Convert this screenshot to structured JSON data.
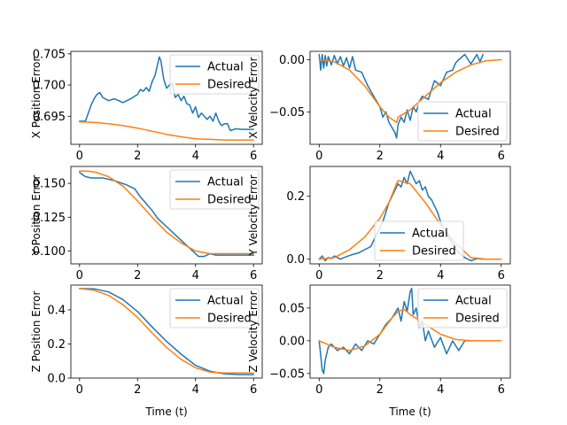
{
  "chart_data": [
    {
      "type": "line",
      "ylabel": "X Position Error",
      "xlabel": "",
      "xlim": [
        -0.3,
        6.3
      ],
      "ylim": [
        0.6905,
        0.7054
      ],
      "xticks": [
        0,
        2,
        4,
        6
      ],
      "xtick_labels": [
        "0",
        "2",
        "4",
        "6"
      ],
      "yticks": [
        0.695,
        0.7,
        0.705
      ],
      "ytick_labels": [
        "0.695",
        "0.700",
        "0.705"
      ],
      "legend": "upper-right",
      "series": [
        {
          "name": "Actual",
          "color": "#1f77b4",
          "x": [
            0,
            0.2,
            0.4,
            0.5,
            0.6,
            0.7,
            0.8,
            1.0,
            1.2,
            1.5,
            1.8,
            2.0,
            2.1,
            2.2,
            2.3,
            2.4,
            2.5,
            2.6,
            2.7,
            2.75,
            2.8,
            2.9,
            3.0,
            3.1,
            3.2,
            3.3,
            3.4,
            3.5,
            3.6,
            3.7,
            3.8,
            3.9,
            4.0,
            4.1,
            4.2,
            4.3,
            4.4,
            4.5,
            4.6,
            4.7,
            4.8,
            4.9,
            5.0,
            5.1,
            5.2,
            5.4,
            5.6,
            5.8,
            6.0
          ],
          "y": [
            0.6942,
            0.6942,
            0.6968,
            0.6978,
            0.6985,
            0.6988,
            0.698,
            0.6975,
            0.6978,
            0.6972,
            0.6979,
            0.6985,
            0.6993,
            0.699,
            0.6996,
            0.699,
            0.7005,
            0.7015,
            0.7035,
            0.7045,
            0.704,
            0.701,
            0.6995,
            0.7,
            0.7003,
            0.698,
            0.6985,
            0.6975,
            0.6982,
            0.697,
            0.6968,
            0.6955,
            0.6965,
            0.6948,
            0.6955,
            0.695,
            0.6945,
            0.695,
            0.6942,
            0.6955,
            0.6942,
            0.6935,
            0.6938,
            0.6938,
            0.6927,
            0.693,
            0.6929,
            0.6929,
            0.6929
          ]
        },
        {
          "name": "Desired",
          "color": "#ff7f0e",
          "x": [
            0,
            0.5,
            1,
            1.5,
            2,
            2.5,
            3,
            3.5,
            4,
            4.5,
            5,
            5.5,
            6
          ],
          "y": [
            0.6941,
            0.694,
            0.6938,
            0.6935,
            0.6931,
            0.6926,
            0.6921,
            0.6917,
            0.6914,
            0.6913,
            0.6912,
            0.6912,
            0.6912
          ]
        }
      ]
    },
    {
      "type": "line",
      "ylabel": "X Velocity Error",
      "xlabel": "",
      "xlim": [
        -0.3,
        6.3
      ],
      "ylim": [
        -0.081,
        0.008
      ],
      "xticks": [
        0,
        2,
        4,
        6
      ],
      "xtick_labels": [
        "0",
        "2",
        "4",
        "6"
      ],
      "yticks": [
        0.0,
        -0.05
      ],
      "ytick_labels": [
        "0.00",
        "−0.05"
      ],
      "legend": "lower-right",
      "series": [
        {
          "name": "Actual",
          "color": "#1f77b4",
          "x": [
            0,
            0.05,
            0.1,
            0.15,
            0.2,
            0.25,
            0.3,
            0.4,
            0.5,
            0.6,
            0.7,
            0.8,
            0.9,
            1.0,
            1.1,
            1.2,
            1.4,
            1.6,
            1.8,
            2.0,
            2.1,
            2.2,
            2.3,
            2.4,
            2.5,
            2.55,
            2.6,
            2.7,
            2.8,
            2.9,
            3.0,
            3.1,
            3.2,
            3.3,
            3.4,
            3.6,
            3.8,
            4.0,
            4.2,
            4.4,
            4.5,
            4.6,
            4.8,
            5.0,
            5.2,
            5.3,
            5.4
          ],
          "y": [
            0.005,
            -0.01,
            0.005,
            -0.008,
            0.004,
            -0.006,
            0.003,
            -0.005,
            0.004,
            -0.004,
            0.003,
            -0.006,
            0.002,
            -0.008,
            0.003,
            -0.01,
            -0.012,
            -0.025,
            -0.035,
            -0.045,
            -0.055,
            -0.05,
            -0.06,
            -0.065,
            -0.07,
            -0.075,
            -0.062,
            -0.055,
            -0.06,
            -0.048,
            -0.058,
            -0.045,
            -0.05,
            -0.04,
            -0.035,
            -0.038,
            -0.02,
            -0.025,
            -0.012,
            -0.01,
            -0.003,
            0.0,
            0.005,
            -0.004,
            0.005,
            -0.002,
            0.005
          ]
        },
        {
          "name": "Desired",
          "color": "#ff7f0e",
          "x": [
            0,
            0.5,
            1.0,
            1.5,
            2.0,
            2.3,
            2.55,
            2.6,
            3.0,
            3.5,
            4.0,
            4.5,
            5.0,
            5.5,
            6.0
          ],
          "y": [
            0.0,
            -0.002,
            -0.01,
            -0.025,
            -0.045,
            -0.055,
            -0.06,
            -0.055,
            -0.048,
            -0.035,
            -0.022,
            -0.012,
            -0.005,
            -0.001,
            0.0
          ]
        }
      ]
    },
    {
      "type": "line",
      "ylabel": "Y Position Error",
      "xlabel": "",
      "xlim": [
        -0.3,
        6.3
      ],
      "ylim": [
        0.0905,
        0.1625
      ],
      "xticks": [
        0,
        2,
        4,
        6
      ],
      "xtick_labels": [
        "0",
        "2",
        "4",
        "6"
      ],
      "yticks": [
        0.1,
        0.125,
        0.15
      ],
      "ytick_labels": [
        "0.100",
        "0.125",
        "0.150"
      ],
      "legend": "upper-right",
      "series": [
        {
          "name": "Actual",
          "color": "#1f77b4",
          "x": [
            0,
            0.2,
            0.4,
            0.8,
            1.2,
            1.6,
            1.9,
            2.1,
            2.3,
            2.5,
            2.7,
            3.0,
            3.3,
            3.6,
            3.9,
            4.1,
            4.3,
            4.5,
            4.7,
            5.0,
            5.5,
            6.0
          ],
          "y": [
            0.158,
            0.155,
            0.154,
            0.154,
            0.152,
            0.149,
            0.146,
            0.14,
            0.135,
            0.13,
            0.124,
            0.118,
            0.112,
            0.106,
            0.1,
            0.096,
            0.096,
            0.098,
            0.097,
            0.097,
            0.097,
            0.097
          ]
        },
        {
          "name": "Desired",
          "color": "#ff7f0e",
          "x": [
            0,
            0.3,
            0.6,
            1.0,
            1.5,
            2.0,
            2.5,
            3.0,
            3.5,
            4.0,
            4.5,
            5.0,
            5.5,
            6.0
          ],
          "y": [
            0.159,
            0.159,
            0.158,
            0.155,
            0.148,
            0.137,
            0.125,
            0.114,
            0.106,
            0.1,
            0.098,
            0.098,
            0.098,
            0.098
          ]
        }
      ]
    },
    {
      "type": "line",
      "ylabel": "Y Velocity Error",
      "xlabel": "",
      "xlim": [
        -0.3,
        6.3
      ],
      "ylim": [
        -0.015,
        0.295
      ],
      "xticks": [
        0,
        2,
        4,
        6
      ],
      "xtick_labels": [
        "0",
        "2",
        "4",
        "6"
      ],
      "yticks": [
        0.0,
        0.2
      ],
      "ytick_labels": [
        "0.0",
        "0.2"
      ],
      "legend": "lower-center",
      "series": [
        {
          "name": "Actual",
          "color": "#1f77b4",
          "x": [
            0,
            0.1,
            0.2,
            0.3,
            0.4,
            0.5,
            0.7,
            0.9,
            1.1,
            1.3,
            1.5,
            1.7,
            1.9,
            2.0,
            2.1,
            2.2,
            2.3,
            2.4,
            2.5,
            2.6,
            2.7,
            2.8,
            2.9,
            3.0,
            3.1,
            3.2,
            3.3,
            3.4,
            3.5,
            3.6,
            3.7,
            3.8,
            3.9,
            4.0,
            4.2,
            4.4,
            4.6,
            4.8,
            5.0,
            5.2,
            5.4
          ],
          "y": [
            0.0,
            0.01,
            -0.005,
            0.005,
            0.002,
            0.01,
            0.0,
            0.008,
            0.015,
            0.02,
            0.03,
            0.04,
            0.08,
            0.1,
            0.12,
            0.15,
            0.18,
            0.2,
            0.22,
            0.24,
            0.23,
            0.26,
            0.24,
            0.28,
            0.26,
            0.24,
            0.25,
            0.22,
            0.23,
            0.2,
            0.19,
            0.17,
            0.15,
            0.12,
            0.08,
            0.05,
            0.02,
            0.005,
            -0.005,
            0.002,
            0.0
          ]
        },
        {
          "name": "Desired",
          "color": "#ff7f0e",
          "x": [
            0,
            0.5,
            1.0,
            1.5,
            2.0,
            2.3,
            2.55,
            2.6,
            3.0,
            3.5,
            4.0,
            4.5,
            5.0,
            5.5,
            6.0
          ],
          "y": [
            0.0,
            0.005,
            0.03,
            0.07,
            0.13,
            0.18,
            0.24,
            0.25,
            0.24,
            0.18,
            0.11,
            0.05,
            0.005,
            0.0,
            0.0
          ]
        }
      ]
    },
    {
      "type": "line",
      "ylabel": "Z Position Error",
      "xlabel": "Time (t)",
      "xlim": [
        -0.3,
        6.3
      ],
      "ylim": [
        0.0,
        0.545
      ],
      "xticks": [
        0,
        2,
        4,
        6
      ],
      "xtick_labels": [
        "0",
        "2",
        "4",
        "6"
      ],
      "yticks": [
        0.0,
        0.2,
        0.4
      ],
      "ytick_labels": [
        "0.0",
        "0.2",
        "0.4"
      ],
      "legend": "upper-right",
      "series": [
        {
          "name": "Actual",
          "color": "#1f77b4",
          "x": [
            0,
            0.5,
            1.0,
            1.5,
            2.0,
            2.5,
            3.0,
            3.5,
            4.0,
            4.5,
            5.0,
            5.5,
            6.0
          ],
          "y": [
            0.525,
            0.523,
            0.505,
            0.46,
            0.39,
            0.3,
            0.215,
            0.14,
            0.075,
            0.04,
            0.025,
            0.02,
            0.02
          ]
        },
        {
          "name": "Desired",
          "color": "#ff7f0e",
          "x": [
            0,
            0.5,
            1.0,
            1.5,
            2.0,
            2.5,
            3.0,
            3.5,
            4.0,
            4.5,
            5.0,
            5.5,
            6.0
          ],
          "y": [
            0.525,
            0.515,
            0.485,
            0.43,
            0.355,
            0.265,
            0.18,
            0.11,
            0.06,
            0.035,
            0.03,
            0.03,
            0.03
          ]
        }
      ]
    },
    {
      "type": "line",
      "ylabel": "Z Velocity Error",
      "xlabel": "Time (t)",
      "xlim": [
        -0.3,
        6.3
      ],
      "ylim": [
        -0.057,
        0.085
      ],
      "xticks": [
        0,
        2,
        4,
        6
      ],
      "xtick_labels": [
        "0",
        "2",
        "4",
        "6"
      ],
      "yticks": [
        0.05,
        0.0,
        -0.05
      ],
      "ytick_labels": [
        "0.05",
        "0.00",
        "−0.05"
      ],
      "legend": "upper-right",
      "series": [
        {
          "name": "Actual",
          "color": "#1f77b4",
          "x": [
            0,
            0.1,
            0.15,
            0.2,
            0.3,
            0.4,
            0.6,
            0.8,
            1.0,
            1.2,
            1.4,
            1.6,
            1.8,
            2.0,
            2.2,
            2.4,
            2.6,
            2.7,
            2.8,
            2.9,
            3.0,
            3.05,
            3.1,
            3.2,
            3.3,
            3.4,
            3.5,
            3.6,
            3.8,
            4.0,
            4.2,
            4.4,
            4.6,
            4.8,
            5.0
          ],
          "y": [
            0.0,
            -0.045,
            -0.05,
            -0.03,
            -0.01,
            -0.005,
            -0.015,
            -0.01,
            -0.02,
            -0.005,
            -0.015,
            0.0,
            -0.005,
            0.01,
            0.025,
            0.035,
            0.05,
            0.03,
            0.06,
            0.045,
            0.075,
            0.08,
            0.04,
            0.05,
            0.02,
            0.03,
            0.0,
            0.015,
            -0.01,
            0.005,
            -0.02,
            0.0,
            -0.015,
            0.0,
            0.0
          ]
        },
        {
          "name": "Desired",
          "color": "#ff7f0e",
          "x": [
            0,
            0.5,
            1.0,
            1.5,
            2.0,
            2.4,
            2.6,
            2.8,
            3.0,
            3.5,
            4.0,
            4.5,
            5.0,
            5.5,
            6.0
          ],
          "y": [
            0.0,
            -0.01,
            -0.015,
            -0.008,
            0.01,
            0.035,
            0.045,
            0.048,
            0.04,
            0.025,
            0.01,
            0.002,
            0.0,
            0.0,
            0.0
          ]
        }
      ]
    }
  ]
}
